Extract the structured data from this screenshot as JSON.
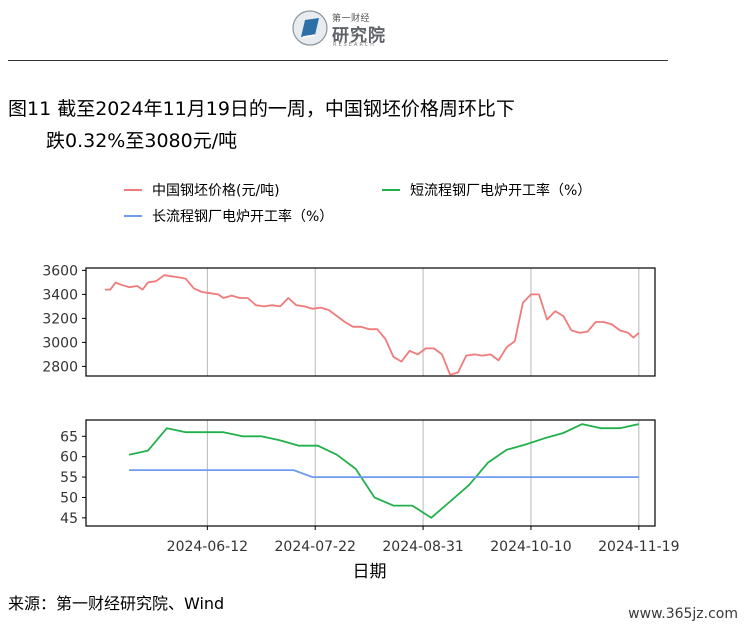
{
  "logo": {
    "top_text": "第一财经",
    "main_text": "研究院",
    "sub_text": "RESEARCH"
  },
  "title": {
    "line1": "图11  截至2024年11月19日的一周，中国钢坯价格周环比下",
    "line2": "跌0.32%至3080元/吨"
  },
  "colors": {
    "price": "#f07b7b",
    "short_process": "#22b04b",
    "long_process": "#6f9cf0"
  },
  "chart_data": [
    {
      "type": "line",
      "series": [
        {
          "name": "中国钢坯价格(元/吨)",
          "color": "#f07b7b",
          "points": [
            [
              "2024-05-05",
              3440
            ],
            [
              "2024-05-07",
              3440
            ],
            [
              "2024-05-09",
              3500
            ],
            [
              "2024-05-11",
              3480
            ],
            [
              "2024-05-14",
              3460
            ],
            [
              "2024-05-17",
              3470
            ],
            [
              "2024-05-19",
              3440
            ],
            [
              "2024-05-21",
              3500
            ],
            [
              "2024-05-24",
              3510
            ],
            [
              "2024-05-27",
              3560
            ],
            [
              "2024-05-30",
              3550
            ],
            [
              "2024-06-02",
              3540
            ],
            [
              "2024-06-04",
              3530
            ],
            [
              "2024-06-07",
              3450
            ],
            [
              "2024-06-10",
              3420
            ],
            [
              "2024-06-13",
              3410
            ],
            [
              "2024-06-16",
              3400
            ],
            [
              "2024-06-18",
              3370
            ],
            [
              "2024-06-21",
              3390
            ],
            [
              "2024-06-24",
              3370
            ],
            [
              "2024-06-27",
              3370
            ],
            [
              "2024-06-30",
              3310
            ],
            [
              "2024-07-03",
              3300
            ],
            [
              "2024-07-06",
              3310
            ],
            [
              "2024-07-09",
              3300
            ],
            [
              "2024-07-12",
              3370
            ],
            [
              "2024-07-15",
              3310
            ],
            [
              "2024-07-18",
              3300
            ],
            [
              "2024-07-21",
              3280
            ],
            [
              "2024-07-24",
              3290
            ],
            [
              "2024-07-27",
              3270
            ],
            [
              "2024-07-30",
              3220
            ],
            [
              "2024-08-02",
              3170
            ],
            [
              "2024-08-05",
              3130
            ],
            [
              "2024-08-08",
              3130
            ],
            [
              "2024-08-11",
              3110
            ],
            [
              "2024-08-14",
              3110
            ],
            [
              "2024-08-17",
              3030
            ],
            [
              "2024-08-20",
              2880
            ],
            [
              "2024-08-23",
              2840
            ],
            [
              "2024-08-26",
              2930
            ],
            [
              "2024-08-29",
              2900
            ],
            [
              "2024-09-01",
              2950
            ],
            [
              "2024-09-04",
              2950
            ],
            [
              "2024-09-07",
              2900
            ],
            [
              "2024-09-10",
              2730
            ],
            [
              "2024-09-13",
              2750
            ],
            [
              "2024-09-16",
              2890
            ],
            [
              "2024-09-19",
              2900
            ],
            [
              "2024-09-22",
              2890
            ],
            [
              "2024-09-25",
              2900
            ],
            [
              "2024-09-28",
              2850
            ],
            [
              "2024-10-01",
              2960
            ],
            [
              "2024-10-04",
              3010
            ],
            [
              "2024-10-07",
              3330
            ],
            [
              "2024-10-10",
              3400
            ],
            [
              "2024-10-13",
              3400
            ],
            [
              "2024-10-16",
              3190
            ],
            [
              "2024-10-19",
              3260
            ],
            [
              "2024-10-22",
              3220
            ],
            [
              "2024-10-25",
              3100
            ],
            [
              "2024-10-28",
              3080
            ],
            [
              "2024-10-31",
              3090
            ],
            [
              "2024-11-03",
              3170
            ],
            [
              "2024-11-06",
              3170
            ],
            [
              "2024-11-09",
              3150
            ],
            [
              "2024-11-12",
              3100
            ],
            [
              "2024-11-15",
              3080
            ],
            [
              "2024-11-17",
              3040
            ],
            [
              "2024-11-19",
              3080
            ]
          ]
        }
      ],
      "y_ticks": [
        2800,
        3000,
        3200,
        3400,
        3600
      ],
      "ylim": [
        2720,
        3620
      ]
    },
    {
      "type": "line",
      "series": [
        {
          "name": "短流程钢厂电炉开工率（%）",
          "color": "#22b04b",
          "points": [
            [
              "2024-05-14",
              60.5
            ],
            [
              "2024-05-21",
              61.5
            ],
            [
              "2024-05-28",
              67
            ],
            [
              "2024-06-04",
              66
            ],
            [
              "2024-06-11",
              66
            ],
            [
              "2024-06-18",
              66
            ],
            [
              "2024-06-25",
              65
            ],
            [
              "2024-07-02",
              65
            ],
            [
              "2024-07-09",
              64
            ],
            [
              "2024-07-16",
              62.7
            ],
            [
              "2024-07-23",
              62.7
            ],
            [
              "2024-07-30",
              60.5
            ],
            [
              "2024-08-06",
              57
            ],
            [
              "2024-08-13",
              50
            ],
            [
              "2024-08-20",
              48
            ],
            [
              "2024-08-27",
              48
            ],
            [
              "2024-09-03",
              45
            ],
            [
              "2024-09-10",
              49
            ],
            [
              "2024-09-17",
              53
            ],
            [
              "2024-09-24",
              58.5
            ],
            [
              "2024-10-01",
              61.7
            ],
            [
              "2024-10-08",
              63
            ],
            [
              "2024-10-15",
              64.5
            ],
            [
              "2024-10-22",
              65.8
            ],
            [
              "2024-10-29",
              68
            ],
            [
              "2024-11-05",
              67
            ],
            [
              "2024-11-12",
              67
            ],
            [
              "2024-11-19",
              68
            ]
          ]
        },
        {
          "name": "长流程钢厂电炉开工率（%）",
          "color": "#6f9cf0",
          "points": [
            [
              "2024-05-14",
              56.7
            ],
            [
              "2024-07-14",
              56.7
            ],
            [
              "2024-07-21",
              55
            ],
            [
              "2024-11-19",
              55
            ]
          ]
        }
      ],
      "y_ticks": [
        45,
        50,
        55,
        60,
        65
      ],
      "ylim": [
        43,
        69
      ]
    }
  ],
  "x_axis": {
    "label": "日期",
    "ticks": [
      "2024-06-12",
      "2024-07-22",
      "2024-08-31",
      "2024-10-10",
      "2024-11-19"
    ]
  },
  "source": "来源：第一财经研究院、Wind",
  "watermark": "www.365jz.com"
}
